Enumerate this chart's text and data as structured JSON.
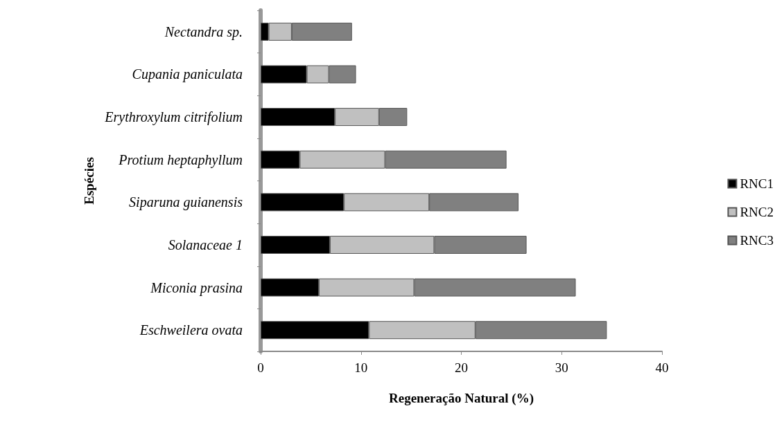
{
  "chart_data": {
    "type": "bar",
    "orientation": "horizontal",
    "stacked": true,
    "xlabel": "Regeneração Natural (%)",
    "ylabel": "Espécies",
    "categories": [
      "Nectandra sp.",
      "Cupania paniculata",
      "Erythroxylum citrifolium",
      "Protium heptaphyllum",
      "Siparuna guianensis",
      "Solanaceae 1",
      "Miconia prasina",
      "Eschweilera ovata"
    ],
    "series": [
      {
        "name": "RNC1",
        "color": "#000000",
        "values": [
          0.8,
          4.6,
          7.4,
          3.9,
          8.3,
          6.9,
          5.8,
          10.8
        ]
      },
      {
        "name": "RNC2",
        "color": "#c0c0c0",
        "values": [
          2.3,
          2.2,
          4.4,
          8.5,
          8.5,
          10.4,
          9.5,
          10.6
        ]
      },
      {
        "name": "RNC3",
        "color": "#808080",
        "values": [
          6.0,
          2.7,
          2.8,
          12.1,
          8.9,
          9.2,
          16.1,
          13.1
        ]
      }
    ],
    "xlim": [
      0,
      40
    ],
    "xticks": [
      0,
      10,
      20,
      30,
      40
    ],
    "grid": false,
    "legend": "right"
  }
}
